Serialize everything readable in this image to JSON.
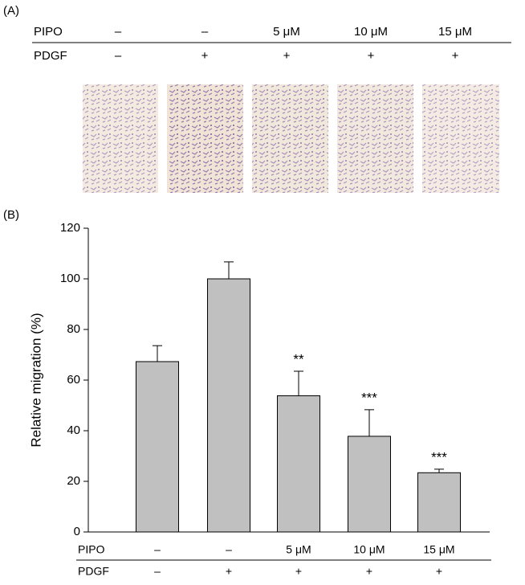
{
  "panel_a": {
    "label": "(A)",
    "rows": [
      {
        "label": "PIPO",
        "cells": [
          "–",
          "–",
          "5 μM",
          "10 μM",
          "15 μM"
        ]
      },
      {
        "label": "PDGF",
        "cells": [
          "–",
          "+",
          "+",
          "+",
          "+"
        ]
      }
    ]
  },
  "chart_data": {
    "type": "bar",
    "panel_label": "(B)",
    "y_label": "Relative migration (%)",
    "values": [
      67.3,
      100,
      53.8,
      37.8,
      23.4
    ],
    "errors": [
      6.3,
      6.7,
      9.7,
      10.5,
      1.4
    ],
    "annotations": [
      null,
      null,
      "**",
      "***",
      "***"
    ],
    "color": "#c0c0c0",
    "ylim": [
      0,
      120
    ],
    "yticks": [
      0,
      20,
      40,
      60,
      80,
      100,
      120
    ],
    "treatment_rows": [
      {
        "label": "PIPO",
        "cells": [
          "–",
          "–",
          "5 μM",
          "10 μM",
          "15 μM"
        ]
      },
      {
        "label": "PDGF",
        "cells": [
          "–",
          "+",
          "+",
          "+",
          "+"
        ]
      }
    ]
  }
}
